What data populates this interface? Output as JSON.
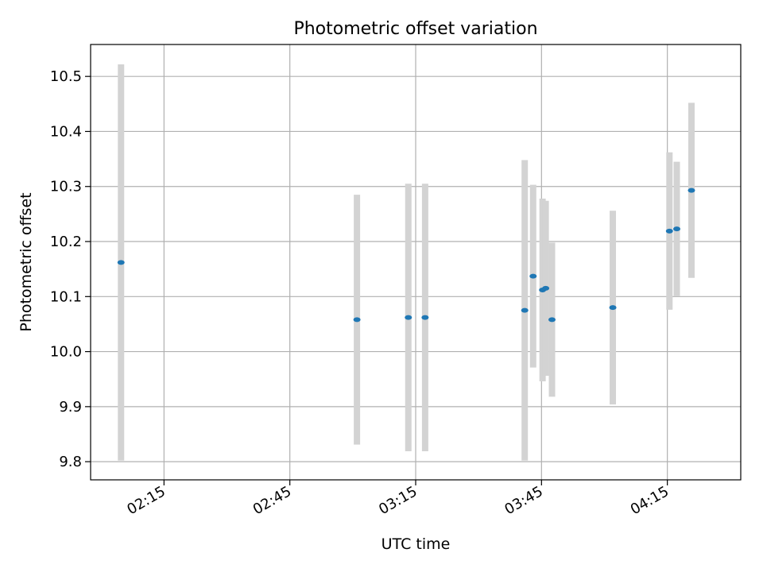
{
  "chart_data": {
    "type": "scatter",
    "title": "Photometric offset variation",
    "xlabel": "UTC time",
    "ylabel": "Photometric offset",
    "xlim": [
      "01:57:30",
      "04:32:30"
    ],
    "ylim": [
      9.767,
      10.558
    ],
    "x_ticks": [
      "02:15",
      "02:45",
      "03:15",
      "03:45",
      "04:15"
    ],
    "y_ticks": [
      "9.8",
      "9.9",
      "10.0",
      "10.1",
      "10.2",
      "10.3",
      "10.4",
      "10.5"
    ],
    "grid": true,
    "series": [
      {
        "points": [
          {
            "x": "02:04:45",
            "y": 10.162,
            "err": 0.36
          },
          {
            "x": "03:01:00",
            "y": 10.058,
            "err": 0.227
          },
          {
            "x": "03:13:15",
            "y": 10.062,
            "err": 0.243
          },
          {
            "x": "03:17:15",
            "y": 10.062,
            "err": 0.243
          },
          {
            "x": "03:41:00",
            "y": 10.075,
            "err": 0.273
          },
          {
            "x": "03:43:00",
            "y": 10.137,
            "err": 0.166
          },
          {
            "x": "03:45:15",
            "y": 10.112,
            "err": 0.166
          },
          {
            "x": "03:46:00",
            "y": 10.115,
            "err": 0.159
          },
          {
            "x": "03:47:30",
            "y": 10.058,
            "err": 0.14
          },
          {
            "x": "04:02:00",
            "y": 10.08,
            "err": 0.176
          },
          {
            "x": "04:15:30",
            "y": 10.219,
            "err": 0.143
          },
          {
            "x": "04:17:15",
            "y": 10.223,
            "err": 0.122
          },
          {
            "x": "04:20:45",
            "y": 10.293,
            "err": 0.159
          }
        ]
      }
    ],
    "marker_color": "#1f77b4",
    "errorbar_color": "#d3d3d3",
    "grid_color": "#b0b0b0"
  }
}
